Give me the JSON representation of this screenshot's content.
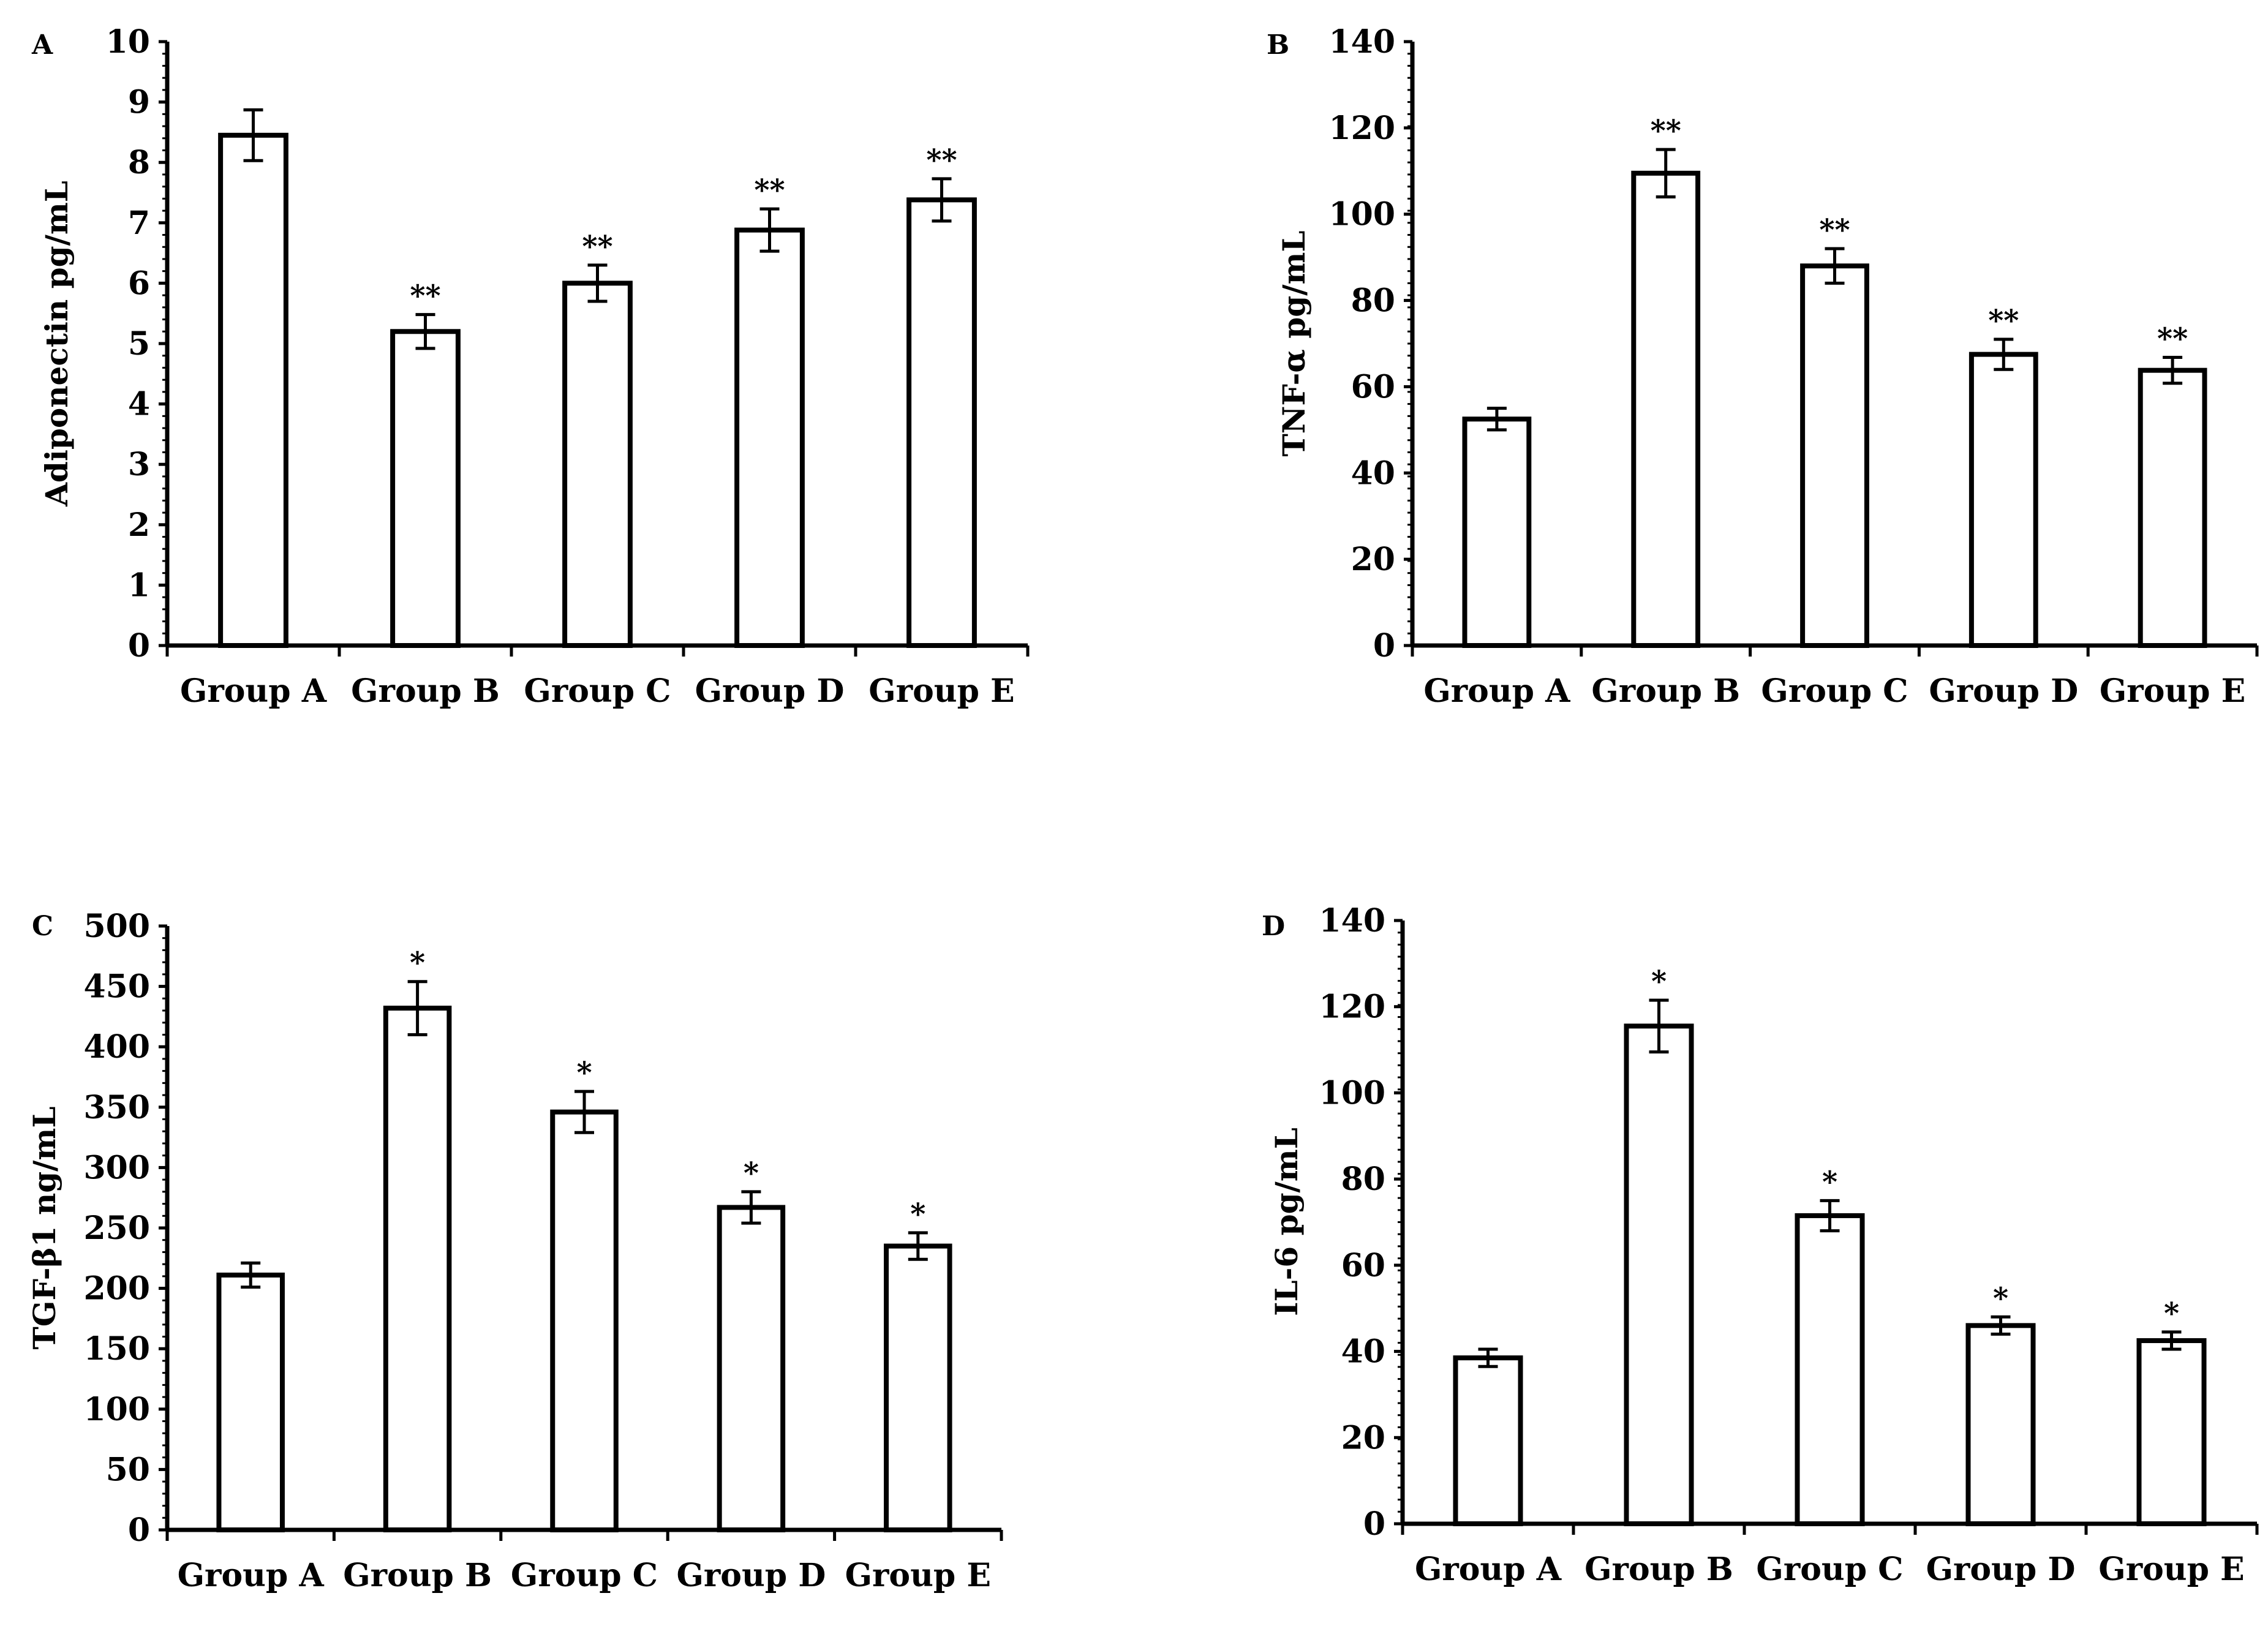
{
  "figure": {
    "description_panels": [
      "A",
      "B",
      "C",
      "D"
    ]
  },
  "chart_data": [
    {
      "type": "bar",
      "panel": "A",
      "ylabel": "Adiponectin pg/mL",
      "xlabel": "",
      "ylim": [
        0,
        10
      ],
      "yticks": [
        0,
        1,
        2,
        3,
        4,
        5,
        6,
        7,
        8,
        9,
        10
      ],
      "categories": [
        "Group A",
        "Group B",
        "Group C",
        "Group D",
        "Group E"
      ],
      "values": [
        8.45,
        5.2,
        6.0,
        6.88,
        7.38
      ],
      "errors": [
        0.42,
        0.28,
        0.3,
        0.35,
        0.35
      ],
      "significance": [
        "",
        "**",
        "**",
        "**",
        "**"
      ]
    },
    {
      "type": "bar",
      "panel": "B",
      "ylabel": "TNF-α pg/mL",
      "xlabel": "",
      "ylim": [
        0,
        140
      ],
      "yticks": [
        0,
        20,
        40,
        60,
        80,
        100,
        120,
        140
      ],
      "categories": [
        "Group A",
        "Group B",
        "Group C",
        "Group D",
        "Group E"
      ],
      "values": [
        52.5,
        109.5,
        88.0,
        67.5,
        63.8
      ],
      "errors": [
        2.5,
        5.5,
        4.0,
        3.5,
        3.0
      ],
      "significance": [
        "",
        "**",
        "**",
        "**",
        "**"
      ]
    },
    {
      "type": "bar",
      "panel": "C",
      "ylabel": "TGF-β1 ng/mL",
      "xlabel": "",
      "ylim": [
        0,
        500
      ],
      "yticks": [
        0,
        50,
        100,
        150,
        200,
        250,
        300,
        350,
        400,
        450,
        500
      ],
      "categories": [
        "Group A",
        "Group B",
        "Group C",
        "Group D",
        "Group E"
      ],
      "values": [
        211,
        432,
        346,
        267,
        235
      ],
      "errors": [
        10,
        22,
        17,
        13,
        11
      ],
      "significance": [
        "",
        "*",
        "*",
        "*",
        "*"
      ]
    },
    {
      "type": "bar",
      "panel": "D",
      "ylabel": "IL-6 pg/mL",
      "xlabel": "",
      "ylim": [
        0,
        140
      ],
      "yticks": [
        0,
        20,
        40,
        60,
        80,
        100,
        120,
        140
      ],
      "categories": [
        "Group A",
        "Group B",
        "Group C",
        "Group D",
        "Group E"
      ],
      "values": [
        38.5,
        115.5,
        71.5,
        46.0,
        42.5
      ],
      "errors": [
        2.0,
        6.0,
        3.5,
        2.0,
        2.0
      ],
      "significance": [
        "",
        "*",
        "*",
        "*",
        "*"
      ]
    }
  ]
}
